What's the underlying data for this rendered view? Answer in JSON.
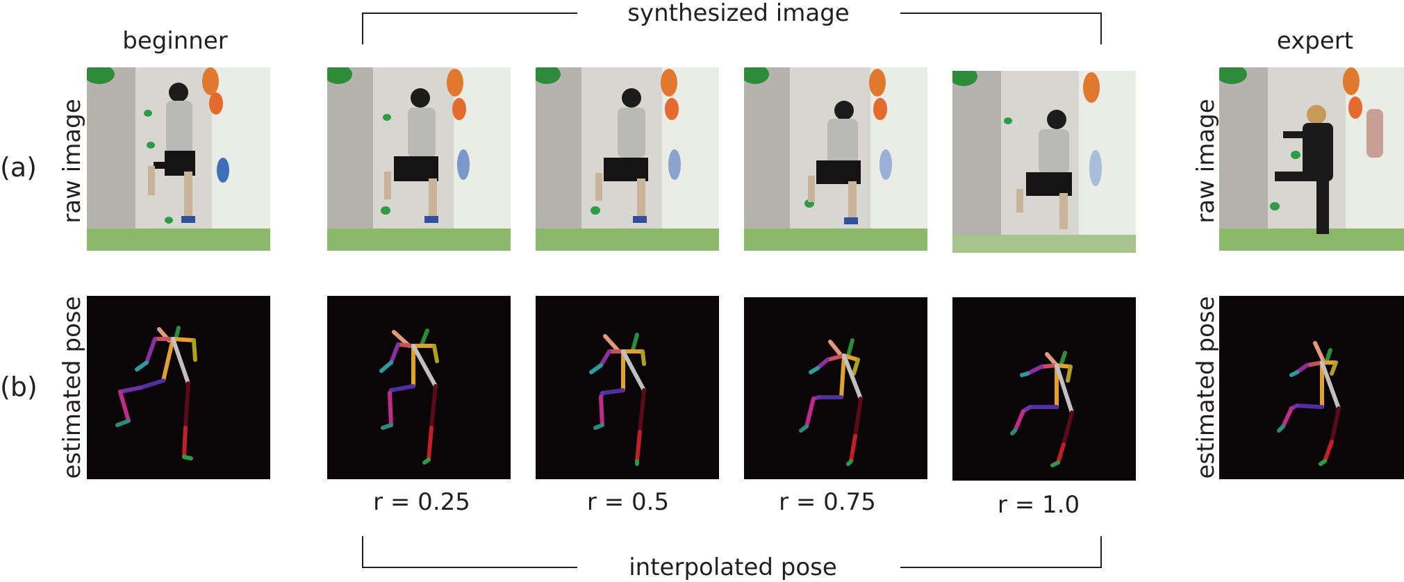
{
  "figure": {
    "columns": {
      "beginner": "beginner",
      "expert": "expert"
    },
    "rows": {
      "a": "(a)",
      "b": "(b)"
    },
    "vertical_labels": {
      "raw": "raw image",
      "pose": "estimated pose"
    },
    "brackets": {
      "top": "synthesized image",
      "bottom": "interpolated pose"
    },
    "ratios": [
      "r = 0.25",
      "r = 0.5",
      "r = 0.75",
      "r = 1.0"
    ]
  },
  "colors": {
    "text": "#231f20",
    "pose_background": "#0a0506"
  }
}
